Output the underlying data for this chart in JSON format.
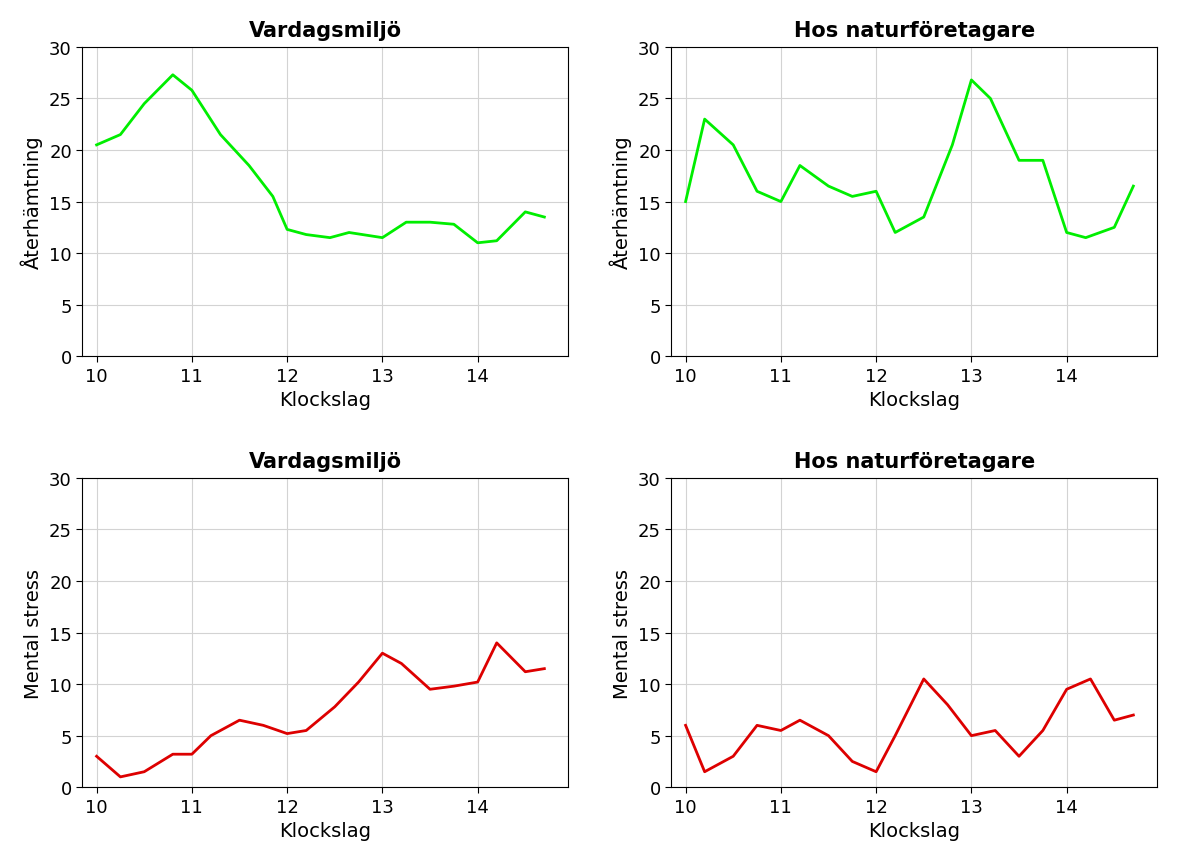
{
  "top_left": {
    "title": "Vardagsmiljö",
    "xlabel": "Klockslag",
    "ylabel": "Återhämtning",
    "color": "#00EE00",
    "x": [
      10.0,
      10.25,
      10.5,
      10.8,
      11.0,
      11.3,
      11.6,
      11.85,
      12.0,
      12.2,
      12.45,
      12.65,
      13.0,
      13.25,
      13.5,
      13.75,
      14.0,
      14.2,
      14.5,
      14.7
    ],
    "y": [
      20.5,
      21.5,
      24.5,
      27.3,
      25.8,
      21.5,
      18.5,
      15.5,
      12.3,
      11.8,
      11.5,
      12.0,
      11.5,
      13.0,
      13.0,
      12.8,
      11.0,
      11.2,
      14.0,
      13.5
    ]
  },
  "top_right": {
    "title": "Hos naturföretagare",
    "xlabel": "Klockslag",
    "ylabel": "Återhämtning",
    "color": "#00EE00",
    "x": [
      10.0,
      10.2,
      10.5,
      10.75,
      11.0,
      11.2,
      11.5,
      11.75,
      12.0,
      12.2,
      12.5,
      12.8,
      13.0,
      13.2,
      13.5,
      13.75,
      14.0,
      14.2,
      14.5,
      14.7
    ],
    "y": [
      15.0,
      23.0,
      20.5,
      16.0,
      15.0,
      18.5,
      16.5,
      15.5,
      16.0,
      12.0,
      13.5,
      20.5,
      26.8,
      25.0,
      19.0,
      19.0,
      12.0,
      11.5,
      12.5,
      16.5
    ]
  },
  "bottom_left": {
    "title": "Vardagsmiljö",
    "xlabel": "Klockslag",
    "ylabel": "Mental stress",
    "color": "#DD0000",
    "x": [
      10.0,
      10.25,
      10.5,
      10.8,
      11.0,
      11.2,
      11.5,
      11.75,
      12.0,
      12.2,
      12.5,
      12.75,
      13.0,
      13.2,
      13.5,
      13.75,
      14.0,
      14.2,
      14.5,
      14.7
    ],
    "y": [
      3.0,
      1.0,
      1.5,
      3.2,
      3.2,
      5.0,
      6.5,
      6.0,
      5.2,
      5.5,
      7.8,
      10.2,
      13.0,
      12.0,
      9.5,
      9.8,
      10.2,
      14.0,
      11.2,
      11.5
    ]
  },
  "bottom_right": {
    "title": "Hos naturföretagare",
    "xlabel": "Klockslag",
    "ylabel": "Mental stress",
    "color": "#DD0000",
    "x": [
      10.0,
      10.2,
      10.5,
      10.75,
      11.0,
      11.2,
      11.5,
      11.75,
      12.0,
      12.2,
      12.5,
      12.75,
      13.0,
      13.25,
      13.5,
      13.75,
      14.0,
      14.25,
      14.5,
      14.7
    ],
    "y": [
      6.0,
      1.5,
      3.0,
      6.0,
      5.5,
      6.5,
      5.0,
      2.5,
      1.5,
      5.0,
      10.5,
      8.0,
      5.0,
      5.5,
      3.0,
      5.5,
      9.5,
      10.5,
      6.5,
      7.0
    ]
  },
  "xlim": [
    9.85,
    14.95
  ],
  "ylim": [
    0,
    30
  ],
  "xticks": [
    10,
    11,
    12,
    13,
    14
  ],
  "yticks": [
    0,
    5,
    10,
    15,
    20,
    25,
    30
  ],
  "title_fontsize": 15,
  "label_fontsize": 14,
  "tick_fontsize": 13,
  "linewidth": 2.0,
  "background_color": "#ffffff",
  "grid_color": "#d3d3d3"
}
